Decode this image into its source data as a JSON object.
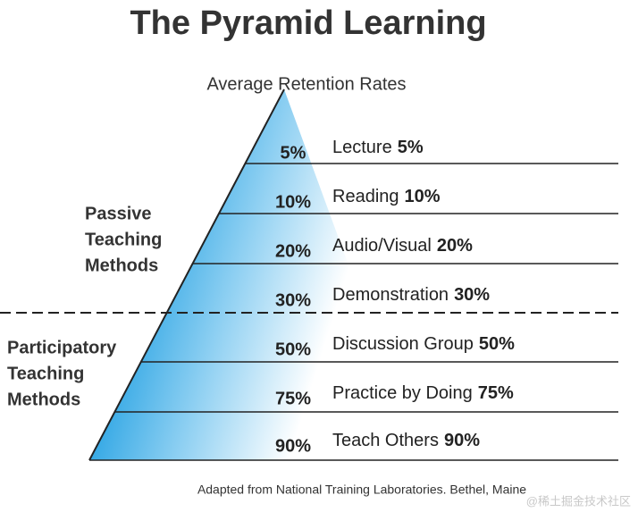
{
  "header": {
    "title": "The Pyramid Learning",
    "subtitle": "Average Retention Rates"
  },
  "groups": [
    {
      "lines": [
        "Passive",
        "Teaching",
        "Methods"
      ]
    },
    {
      "lines": [
        "Participatory",
        "Teaching",
        "Methods"
      ]
    }
  ],
  "levels": [
    {
      "rate": "5%",
      "method": "Lecture"
    },
    {
      "rate": "10%",
      "method": "Reading"
    },
    {
      "rate": "20%",
      "method": "Audio/Visual"
    },
    {
      "rate": "30%",
      "method": "Demonstration"
    },
    {
      "rate": "50%",
      "method": "Discussion Group"
    },
    {
      "rate": "75%",
      "method": "Practice by Doing"
    },
    {
      "rate": "90%",
      "method": "Teach Others"
    }
  ],
  "footer": {
    "source": "Adapted from National Training Laboratories. Bethel, Maine",
    "watermark": "@稀土掘金技术社区"
  }
}
